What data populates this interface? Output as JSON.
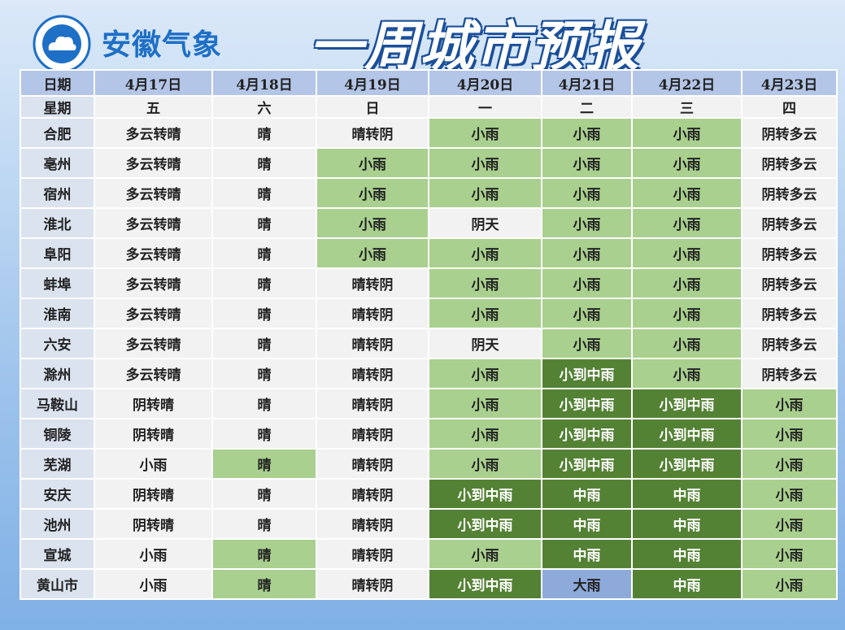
{
  "header": {
    "logo_text": "安徽气象",
    "title": "一周城市预报"
  },
  "table": {
    "columns": [
      "日期",
      "4月17日",
      "4月18日",
      "4月19日",
      "4月20日",
      "4月21日",
      "4月22日",
      "4月23日"
    ],
    "weekdays": [
      "星期",
      "五",
      "六",
      "日",
      "一",
      "二",
      "三",
      "四"
    ],
    "rows": [
      [
        "合肥",
        "多云转晴",
        "晴",
        "晴转阴",
        "小雨",
        "小雨",
        "小雨",
        "阴转多云"
      ],
      [
        "亳州",
        "多云转晴",
        "晴",
        "小雨",
        "小雨",
        "小雨",
        "小雨",
        "阴转多云"
      ],
      [
        "宿州",
        "多云转晴",
        "晴",
        "小雨",
        "小雨",
        "小雨",
        "小雨",
        "阴转多云"
      ],
      [
        "淮北",
        "多云转晴",
        "晴",
        "小雨",
        "阴天",
        "小雨",
        "小雨",
        "阴转多云"
      ],
      [
        "阜阳",
        "多云转晴",
        "晴",
        "小雨",
        "小雨",
        "小雨",
        "小雨",
        "阴转多云"
      ],
      [
        "蚌埠",
        "多云转晴",
        "晴",
        "晴转阴",
        "小雨",
        "小雨",
        "小雨",
        "阴转多云"
      ],
      [
        "淮南",
        "多云转晴",
        "晴",
        "晴转阴",
        "小雨",
        "小雨",
        "小雨",
        "阴转多云"
      ],
      [
        "六安",
        "多云转晴",
        "晴",
        "晴转阴",
        "阴天",
        "小雨",
        "小雨",
        "阴转多云"
      ],
      [
        "滁州",
        "多云转晴",
        "晴",
        "晴转阴",
        "小雨",
        "小到中雨",
        "小雨",
        "阴转多云"
      ],
      [
        "马鞍山",
        "阴转晴",
        "晴",
        "晴转阴",
        "小雨",
        "小到中雨",
        "小到中雨",
        "小雨"
      ],
      [
        "铜陵",
        "阴转晴",
        "晴",
        "晴转阴",
        "小雨",
        "小到中雨",
        "小到中雨",
        "小雨"
      ],
      [
        "芜湖",
        "小雨",
        "晴",
        "晴转阴",
        "小雨",
        "小到中雨",
        "小到中雨",
        "小雨"
      ],
      [
        "安庆",
        "阴转晴",
        "晴",
        "晴转阴",
        "小到中雨",
        "中雨",
        "中雨",
        "小雨"
      ],
      [
        "池州",
        "阴转晴",
        "晴",
        "晴转阴",
        "小到中雨",
        "中雨",
        "中雨",
        "小雨"
      ],
      [
        "宣城",
        "小雨",
        "晴",
        "晴转阴",
        "小雨",
        "中雨",
        "中雨",
        "小雨"
      ],
      [
        "黄山市",
        "小雨",
        "晴",
        "晴转阴",
        "小到中雨",
        "大雨",
        "中雨",
        "小雨"
      ]
    ]
  }
}
